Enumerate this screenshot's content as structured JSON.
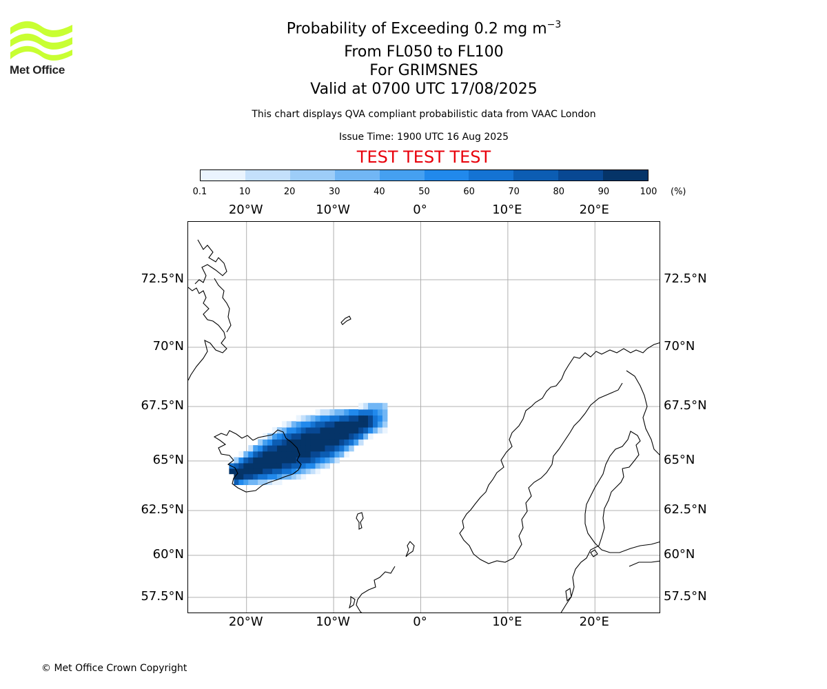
{
  "logo": {
    "text": "Met Office",
    "wave_color": "#c8ff32"
  },
  "title": {
    "line1_prefix": "Probability of Exceeding 0.2 mg m",
    "line1_superscript": "−3",
    "line2": "From FL050 to FL100",
    "line3": "For GRIMSNES",
    "line4": "Valid at 0700 UTC 17/08/2025"
  },
  "subtitle": "This chart displays QVA compliant probabilistic data from VAAC London",
  "issue_time": "Issue Time: 1900 UTC 16 Aug 2025",
  "test_banner": "TEST TEST TEST",
  "colorbar": {
    "ticks": [
      "0.1",
      "10",
      "20",
      "30",
      "40",
      "50",
      "60",
      "70",
      "80",
      "90",
      "100"
    ],
    "unit": "(%)",
    "colors": [
      "#eaf4fe",
      "#c4e0fb",
      "#9dcdf8",
      "#71b6f5",
      "#45a0f1",
      "#2189ec",
      "#1473d3",
      "#0c5db3",
      "#084893",
      "#053468",
      "#032148"
    ]
  },
  "map": {
    "lat_ticks": [
      "72.5°N",
      "70°N",
      "67.5°N",
      "65°N",
      "62.5°N",
      "60°N",
      "57.5°N"
    ],
    "lon_ticks": [
      "20°W",
      "10°W",
      "0°",
      "10°E",
      "20°E"
    ],
    "gridline_color": "#b0b0b0",
    "coastline_color": "#000000"
  },
  "chart_data": {
    "type": "heatmap",
    "title": "Probability of Exceeding 0.2 mg m−3",
    "legend_unit": "(%)",
    "value_range": [
      0.1,
      100
    ],
    "plume": {
      "source": "GRIMSNES",
      "core_band_percent": [
        90,
        100
      ],
      "core_lon_range": [
        -21,
        -7
      ],
      "core_lat_range": [
        64.2,
        66.9
      ],
      "outer_lon_range": [
        -22,
        -4
      ],
      "outer_lat_range": [
        63.8,
        67.4
      ]
    }
  },
  "copyright": "© Met Office Crown Copyright"
}
